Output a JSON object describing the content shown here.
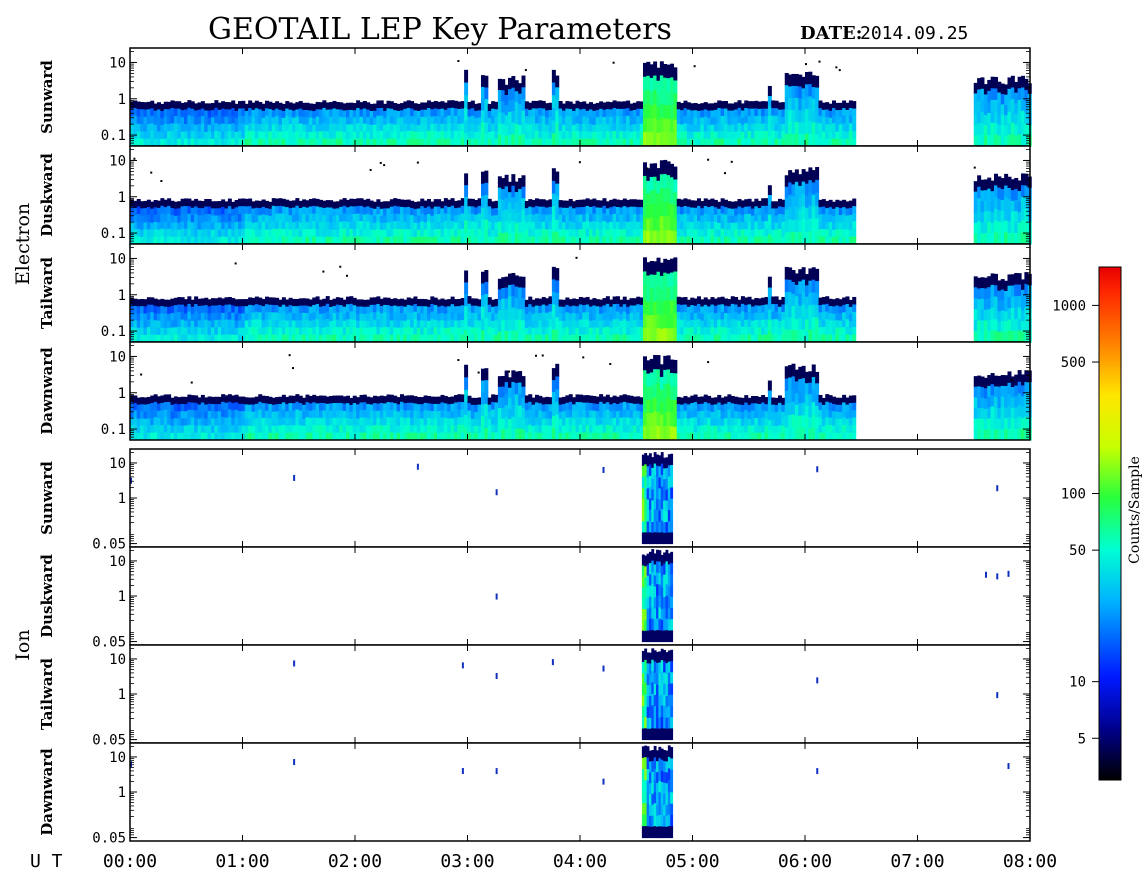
{
  "header": {
    "title": "GEOTAIL LEP Key Parameters",
    "date_label": "DATE:",
    "date_value": "2014.09.25"
  },
  "groups": [
    {
      "label": "Electron"
    },
    {
      "label": "Ion"
    }
  ],
  "x_axis": {
    "label": "U T",
    "ticks": [
      "00:00",
      "01:00",
      "02:00",
      "03:00",
      "04:00",
      "05:00",
      "06:00",
      "07:00",
      "08:00"
    ],
    "range_hours": [
      0,
      8
    ]
  },
  "colorbar": {
    "label": "Counts/Sample",
    "ticks": [
      5,
      10,
      50,
      100,
      500,
      1000
    ],
    "range": [
      3,
      1600
    ],
    "scale": "log",
    "colors": [
      "#000000",
      "#00008c",
      "#0018ff",
      "#00b4ff",
      "#00ffd2",
      "#28ff3c",
      "#c8ff00",
      "#ffe600",
      "#ff8200",
      "#ff2800",
      "#e60000"
    ]
  },
  "chart_data": {
    "type": "heatmap",
    "description_axis_y": "energy (keV), log scale",
    "panels": [
      {
        "group": "Electron",
        "direction": "Sunward",
        "yticks": [
          "10",
          "1",
          "0.1"
        ],
        "ylim": [
          0.05,
          25
        ]
      },
      {
        "group": "Electron",
        "direction": "Duskward",
        "yticks": [
          "10",
          "1",
          "0.1"
        ],
        "ylim": [
          0.05,
          25
        ]
      },
      {
        "group": "Electron",
        "direction": "Tailward",
        "yticks": [
          "10",
          "1",
          "0.1"
        ],
        "ylim": [
          0.05,
          25
        ]
      },
      {
        "group": "Electron",
        "direction": "Dawnward",
        "yticks": [
          "10",
          "1",
          "0.1"
        ],
        "ylim": [
          0.05,
          25
        ]
      },
      {
        "group": "Ion",
        "direction": "Sunward",
        "yticks": [
          "10",
          "1",
          "0.05"
        ],
        "ylim": [
          0.04,
          25
        ]
      },
      {
        "group": "Ion",
        "direction": "Duskward",
        "yticks": [
          "10",
          "1",
          "0.05"
        ],
        "ylim": [
          0.04,
          25
        ]
      },
      {
        "group": "Ion",
        "direction": "Tailward",
        "yticks": [
          "10",
          "1",
          "0.05"
        ],
        "ylim": [
          0.04,
          25
        ]
      },
      {
        "group": "Ion",
        "direction": "Dawnward",
        "yticks": [
          "10",
          "1",
          "0.05"
        ],
        "ylim": [
          0.04,
          25
        ]
      }
    ],
    "data_gap_hours": [
      6.45,
      7.48
    ],
    "electron_features": {
      "background_cutoff_keV": 0.8,
      "bursts": [
        {
          "t": [
            2.95,
            2.98
          ],
          "top_keV": 6
        },
        {
          "t": [
            3.1,
            3.15
          ],
          "top_keV": 5
        },
        {
          "t": [
            3.25,
            3.5
          ],
          "top_keV": 4
        },
        {
          "t": [
            3.72,
            3.8
          ],
          "top_keV": 6
        },
        {
          "t": [
            4.55,
            4.85
          ],
          "top_keV": 10,
          "intensity": "high"
        },
        {
          "t": [
            5.65,
            5.7
          ],
          "top_keV": 3
        },
        {
          "t": [
            5.8,
            6.1
          ],
          "top_keV": 6
        },
        {
          "t": [
            7.48,
            8.0
          ],
          "top_keV": 4
        }
      ]
    },
    "ion_features": {
      "blocks": [
        {
          "t": [
            4.55,
            4.82
          ],
          "range_keV": [
            0.05,
            20
          ],
          "intensity": "high"
        }
      ],
      "isolated_points_hours": [
        0.0,
        1.45,
        2.55,
        2.95,
        3.25,
        3.75,
        4.2,
        6.1,
        7.6,
        7.7,
        7.8
      ]
    }
  }
}
